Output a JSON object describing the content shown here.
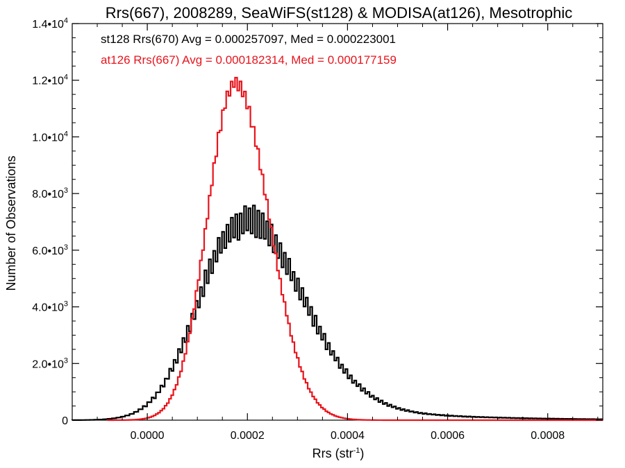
{
  "chart_data": {
    "type": "histogram",
    "title": "Rrs(667), 2008289, SeaWiFS(st128) & MODISA(at126), Mesotrophic",
    "xlabel": "Rrs (str",
    "xlabel_sup": "-1",
    "xlabel_suffix": ")",
    "ylabel": "Number of Observations",
    "xlim": [
      -0.00015,
      0.00091
    ],
    "ylim": [
      0,
      14000
    ],
    "xticks": [
      {
        "value": 0.0,
        "label": "0.0000"
      },
      {
        "value": 0.0002,
        "label": "0.0002"
      },
      {
        "value": 0.0004,
        "label": "0.0004"
      },
      {
        "value": 0.0006,
        "label": "0.0006"
      },
      {
        "value": 0.0008,
        "label": "0.0008"
      }
    ],
    "yticks": [
      {
        "value": 0,
        "mant": "0",
        "exp": ""
      },
      {
        "value": 2000,
        "mant": "2.0•10",
        "exp": "3"
      },
      {
        "value": 4000,
        "mant": "4.0•10",
        "exp": "3"
      },
      {
        "value": 6000,
        "mant": "6.0•10",
        "exp": "3"
      },
      {
        "value": 8000,
        "mant": "8.0•10",
        "exp": "3"
      },
      {
        "value": 10000,
        "mant": "1.0•10",
        "exp": "4"
      },
      {
        "value": 12000,
        "mant": "1.2•10",
        "exp": "4"
      },
      {
        "value": 14000,
        "mant": "1.4•10",
        "exp": "4"
      }
    ],
    "grid": false,
    "legend_position": "top-left",
    "series": [
      {
        "name": "st128",
        "legend": "st128 Rrs(670) Avg = 0.000257097, Med = 0.000223001",
        "color": "#000000",
        "line_width": 2.2,
        "bin_width": 4.4e-06,
        "x_start": -0.00015,
        "x_end": 0.00091,
        "model": {
          "mu": 0.000182,
          "sigma_left": 8.15e-05,
          "sigma_right": 0.000118,
          "peak": 6800,
          "tail_amp": 1200,
          "tail_decay": 0.0002
        },
        "noise": 0.08,
        "points": [
          [
            -0.00015,
            60
          ],
          [
            -0.0001,
            120
          ],
          [
            -5e-05,
            270
          ],
          [
            0.0,
            650
          ],
          [
            5e-05,
            1650
          ],
          [
            0.0001,
            3700
          ],
          [
            0.00015,
            5900
          ],
          [
            0.000175,
            6650
          ],
          [
            0.0002,
            6600
          ],
          [
            0.00025,
            5500
          ],
          [
            0.0003,
            3950
          ],
          [
            0.00035,
            2950
          ],
          [
            0.0004,
            2050
          ],
          [
            0.00045,
            1500
          ],
          [
            0.0005,
            1120
          ],
          [
            0.00055,
            820
          ],
          [
            0.0006,
            600
          ],
          [
            0.00065,
            450
          ],
          [
            0.0007,
            320
          ],
          [
            0.00075,
            220
          ],
          [
            0.0008,
            150
          ],
          [
            0.00085,
            90
          ],
          [
            0.0009,
            50
          ]
        ]
      },
      {
        "name": "at126",
        "legend": "at126 Rrs(667) Avg = 0.000182314, Med = 0.000177159",
        "color": "#e8141c",
        "line_width": 2.2,
        "bin_width": 4.4e-06,
        "x_start": -8e-05,
        "x_end": 0.00091,
        "model": {
          "mu": 0.000175,
          "sigma_left": 5.5e-05,
          "sigma_right": 6.8e-05,
          "peak": 11900,
          "tail_amp": 0,
          "tail_decay": 0.0001
        },
        "noise": 0.02,
        "points": [
          [
            -8e-05,
            0
          ],
          [
            -5e-05,
            60
          ],
          [
            0.0,
            700
          ],
          [
            5e-05,
            2900
          ],
          [
            0.0001,
            6500
          ],
          [
            0.00015,
            10700
          ],
          [
            0.000175,
            11900
          ],
          [
            0.0002,
            11100
          ],
          [
            0.00025,
            7100
          ],
          [
            0.0003,
            2650
          ],
          [
            0.00035,
            700
          ],
          [
            0.0004,
            250
          ],
          [
            0.00045,
            120
          ],
          [
            0.0005,
            60
          ],
          [
            0.0006,
            20
          ],
          [
            0.0007,
            8
          ],
          [
            0.0009,
            0
          ]
        ]
      }
    ]
  }
}
